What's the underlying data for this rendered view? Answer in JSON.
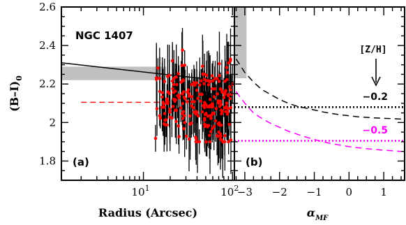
{
  "chart_data": [
    {
      "panel": "(a)",
      "type": "scatter",
      "xscale": "log",
      "xlabel": "Radius (Arcsec)",
      "ylabel": "(B–I)",
      "ylabel_sub": "0",
      "object_label": "NGC 1407",
      "xlim": [
        1.2,
        105
      ],
      "ylim": [
        1.7,
        2.6
      ],
      "x_major_ticks": [
        10,
        100
      ],
      "x_tick_labels": [
        {
          "base": "10",
          "exp": "1"
        },
        {
          "base": "10",
          "exp": "2"
        }
      ],
      "y_ticks": [
        1.8,
        2,
        2.2,
        2.4,
        2.6
      ],
      "y_tick_labels": [
        "1.8",
        "2",
        "2.2",
        "2.4",
        "2.6"
      ],
      "colors": {
        "points": "#ff0000",
        "errorbars": "#000000",
        "fit": "#000000",
        "band": "#c0c0c0",
        "mean_line": "#ff0000"
      },
      "gc_data": {
        "n_points": 230,
        "x_range": [
          13.5,
          100
        ],
        "y_center": 2.1,
        "y_spread": [
          1.9,
          2.5
        ],
        "typical_error": 0.1
      },
      "fit_line": {
        "x": [
          1.2,
          105
        ],
        "y": [
          2.31,
          2.21
        ]
      },
      "gray_band": {
        "y_range": [
          2.22,
          2.29
        ],
        "x_range": [
          1.2,
          18
        ]
      },
      "mean_line": {
        "y": 2.105,
        "x_range": [
          2,
          18
        ],
        "style": "dashed",
        "color": "#ff0000"
      }
    },
    {
      "panel": "(b)",
      "type": "line",
      "xlabel": "α",
      "xlabel_sub": "MF",
      "xlim": [
        -3.3,
        1.6
      ],
      "ylim": [
        1.7,
        2.6
      ],
      "x_ticks": [
        -3,
        -2,
        -1,
        0,
        1
      ],
      "x_tick_labels": [
        "−3",
        "−2",
        "−1",
        "0",
        "1"
      ],
      "y_ticks": [
        1.8,
        2,
        2.2,
        2.4,
        2.6
      ],
      "series": [
        {
          "name": "−0.2",
          "color": "#000000",
          "style": "dashed",
          "x": [
            -3.25,
            -3.0,
            -2.75,
            -2.5,
            -2.25,
            -2.0,
            -1.75,
            -1.5,
            -1.25,
            -1.0,
            -0.75,
            -0.5,
            -0.25,
            0.0,
            0.25,
            0.5,
            0.75,
            1.0,
            1.25,
            1.5
          ],
          "y": [
            2.33,
            2.26,
            2.21,
            2.17,
            2.145,
            2.12,
            2.1,
            2.085,
            2.075,
            2.065,
            2.055,
            2.047,
            2.04,
            2.035,
            2.03,
            2.027,
            2.024,
            2.022,
            2.02,
            2.018
          ]
        },
        {
          "name": "−0.5",
          "color": "#ff00ff",
          "style": "dashed",
          "x": [
            -3.25,
            -3.0,
            -2.75,
            -2.5,
            -2.25,
            -2.0,
            -1.75,
            -1.5,
            -1.25,
            -1.0,
            -0.75,
            -0.5,
            -0.25,
            0.0,
            0.25,
            0.5,
            0.75,
            1.0,
            1.25,
            1.5
          ],
          "y": [
            2.16,
            2.1,
            2.05,
            2.02,
            1.995,
            1.975,
            1.955,
            1.94,
            1.925,
            1.912,
            1.9,
            1.89,
            1.882,
            1.875,
            1.869,
            1.864,
            1.86,
            1.856,
            1.853,
            1.85
          ]
        }
      ],
      "horizontal_lines": [
        {
          "y": 2.08,
          "color": "#000000",
          "style": "dotted"
        },
        {
          "y": 1.905,
          "color": "#ff00ff",
          "style": "dotted"
        }
      ],
      "gray_region": {
        "x_range": [
          -3.3,
          -2.95
        ],
        "y_range": [
          2.23,
          2.6
        ],
        "h_y_range": [
          2.23,
          2.29
        ]
      },
      "annotation_label": "[Z/H]",
      "arrow": "down",
      "value_labels": [
        {
          "text": "−0.2",
          "color": "#000000"
        },
        {
          "text": "−0.5",
          "color": "#ff00ff"
        }
      ]
    }
  ]
}
